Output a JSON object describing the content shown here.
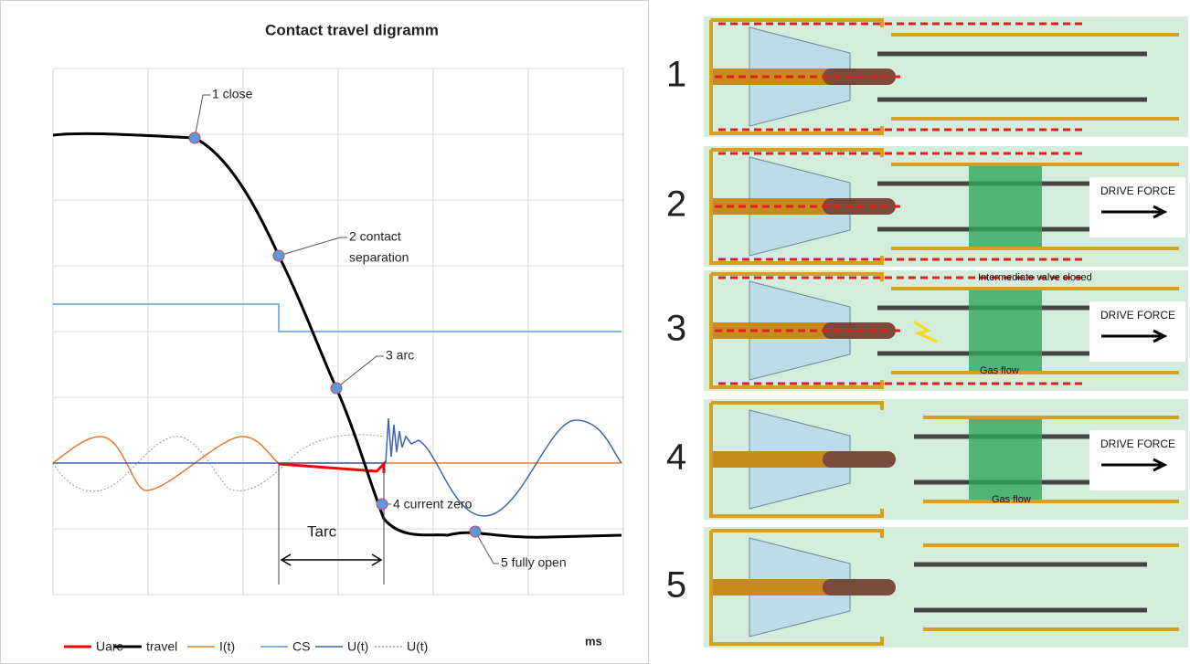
{
  "chart": {
    "title": "Contact travel digramm",
    "annotations": [
      "1 close",
      "2 contact",
      "separation",
      "3 arc",
      "4 current zero",
      "5 fully open",
      "Tarc"
    ],
    "x_unit": "ms",
    "legend": [
      {
        "name": "Uarc",
        "color": "#ff0000",
        "style": "solid"
      },
      {
        "name": "travel",
        "color": "#000000",
        "style": "solid"
      },
      {
        "name": "I(t)",
        "color": "#e07b2a",
        "style": "solid"
      },
      {
        "name": "CS",
        "color": "#5b9bd5",
        "style": "solid"
      },
      {
        "name": "U(t)",
        "color": "#3e64b0",
        "style": "solid"
      },
      {
        "name": "U(t)",
        "color": "#9a9a9a",
        "style": "dotted"
      }
    ]
  },
  "panels": [
    {
      "number": "1",
      "labels": []
    },
    {
      "number": "2",
      "labels": [
        "DRIVE FORCE"
      ]
    },
    {
      "number": "3",
      "labels": [
        "Intermediate valve closed",
        "DRIVE FORCE",
        "Gas flow"
      ]
    },
    {
      "number": "4",
      "labels": [
        "DRIVE FORCE",
        "Gas flow"
      ]
    },
    {
      "number": "5",
      "labels": []
    }
  ]
}
